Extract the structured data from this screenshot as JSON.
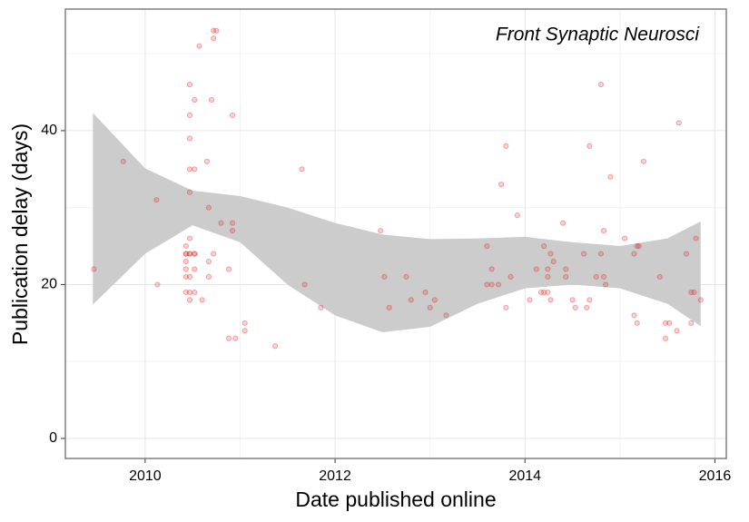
{
  "chart_data": {
    "type": "scatter",
    "annotation": "Front Synaptic Neurosci",
    "xlabel": "Date published online",
    "ylabel": "Publication delay (days)",
    "xlim": [
      2009.16,
      2016.12
    ],
    "ylim": [
      -2.6,
      55.8
    ],
    "xticks": [
      2010,
      2012,
      2014,
      2016
    ],
    "yticks": [
      0,
      20,
      40
    ],
    "minor_grid": {
      "x": [
        2011,
        2013,
        2015
      ],
      "y": [
        10,
        30,
        50
      ]
    },
    "grid": true,
    "point_color": "#e41a1c",
    "band_color": "#cccccc",
    "x": [
      2009.46,
      2009.77,
      2010.12,
      2010.13,
      2010.43,
      2010.43,
      2010.43,
      2010.43,
      2010.43,
      2010.43,
      2010.43,
      2010.47,
      2010.47,
      2010.47,
      2010.47,
      2010.47,
      2010.47,
      2010.47,
      2010.47,
      2010.47,
      2010.47,
      2010.47,
      2010.52,
      2010.52,
      2010.52,
      2010.52,
      2010.52,
      2010.52,
      2010.57,
      2010.6,
      2010.65,
      2010.67,
      2010.67,
      2010.67,
      2010.7,
      2010.72,
      2010.72,
      2010.72,
      2010.75,
      2010.8,
      2010.88,
      2010.88,
      2010.92,
      2010.92,
      2010.92,
      2010.95,
      2011.05,
      2011.05,
      2011.37,
      2011.65,
      2011.68,
      2011.85,
      2012.48,
      2012.52,
      2012.57,
      2012.75,
      2012.8,
      2012.95,
      2013.0,
      2013.05,
      2013.17,
      2013.6,
      2013.6,
      2013.65,
      2013.65,
      2013.72,
      2013.75,
      2013.8,
      2013.8,
      2013.85,
      2013.92,
      2014.05,
      2014.12,
      2014.17,
      2014.2,
      2014.2,
      2014.24,
      2014.24,
      2014.24,
      2014.27,
      2014.27,
      2014.3,
      2014.4,
      2014.43,
      2014.43,
      2014.5,
      2014.53,
      2014.62,
      2014.65,
      2014.68,
      2014.68,
      2014.75,
      2014.8,
      2014.8,
      2014.83,
      2014.83,
      2014.85,
      2014.9,
      2015.05,
      2015.15,
      2015.15,
      2015.18,
      2015.18,
      2015.2,
      2015.25,
      2015.42,
      2015.48,
      2015.48,
      2015.52,
      2015.6,
      2015.62,
      2015.7,
      2015.75,
      2015.75,
      2015.78,
      2015.8,
      2015.85
    ],
    "y": [
      22,
      36,
      31,
      20,
      24,
      24,
      21,
      19,
      25,
      23,
      22,
      24,
      21,
      19,
      35,
      39,
      42,
      46,
      32,
      26,
      18,
      24,
      35,
      22,
      24,
      44,
      24,
      19,
      51,
      18,
      36,
      30,
      23,
      21,
      44,
      53,
      52,
      24,
      53,
      28,
      22,
      13,
      27,
      28,
      42,
      13,
      14,
      15,
      12,
      35,
      20,
      17,
      27,
      21,
      17,
      21,
      18,
      19,
      17,
      18,
      16,
      25,
      20,
      22,
      20,
      20,
      33,
      38,
      17,
      21,
      29,
      18,
      22,
      19,
      25,
      19,
      22,
      21,
      19,
      18,
      24,
      23,
      28,
      22,
      21,
      18,
      17,
      24,
      17,
      38,
      18,
      21,
      46,
      24,
      27,
      21,
      20,
      34,
      26,
      16,
      24,
      25,
      15,
      25,
      36,
      21,
      15,
      13,
      15,
      14,
      41,
      24,
      19,
      15,
      19,
      26,
      18
    ],
    "band": {
      "x": [
        2009.45,
        2010.0,
        2010.5,
        2011.0,
        2011.5,
        2012.0,
        2012.5,
        2013.0,
        2013.5,
        2014.0,
        2014.5,
        2015.0,
        2015.5,
        2015.85
      ],
      "upper": [
        42.3,
        35.1,
        32.2,
        31.5,
        30,
        28,
        26.5,
        25.9,
        26,
        26.2,
        25.5,
        25,
        26,
        28.2
      ],
      "lower": [
        17.4,
        24,
        27.7,
        25.5,
        20,
        16,
        13.8,
        14.5,
        17.5,
        19.5,
        20,
        19.5,
        17.5,
        14.6
      ]
    }
  }
}
